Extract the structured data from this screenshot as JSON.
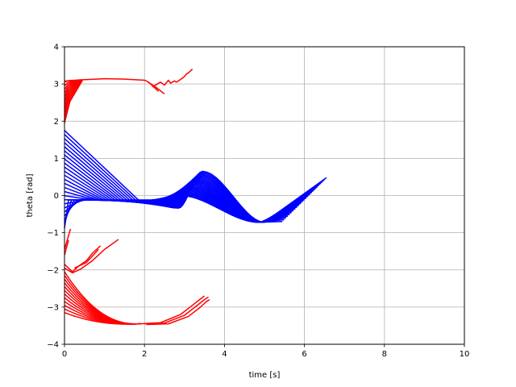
{
  "chart_data": {
    "type": "line",
    "title": "",
    "xlabel": "time [s]",
    "ylabel": "theta [rad]",
    "xlim": [
      0,
      10
    ],
    "ylim": [
      -4,
      4
    ],
    "xticks": [
      0,
      2,
      4,
      6,
      8,
      10
    ],
    "xtick_labels": [
      "0",
      "2",
      "4",
      "6",
      "8",
      "10"
    ],
    "yticks": [
      -4,
      -3,
      -2,
      -1,
      0,
      1,
      2,
      3,
      4
    ],
    "ytick_labels": [
      "−4",
      "−3",
      "−2",
      "−1",
      "0",
      "1",
      "2",
      "3",
      "4"
    ],
    "grid": true,
    "legend": false,
    "colors": {
      "red": "#ff0000",
      "blue": "#0000ff",
      "grid": "#b0b0b0",
      "axes": "#000000"
    },
    "series_groups": {
      "red_top_fan": {
        "color": "#ff0000",
        "count": 12,
        "t_start": 0.0,
        "t_end": 0.45,
        "y_start_range": [
          1.95,
          3.05
        ],
        "y_end": 3.1
      },
      "red_top_trunk": {
        "color": "#ff0000",
        "x": [
          0.0,
          0.4,
          1.0,
          1.5,
          2.0,
          2.05
        ],
        "y": [
          3.08,
          3.11,
          3.14,
          3.13,
          3.1,
          3.08
        ]
      },
      "red_top_branches": [
        {
          "color": "#ff0000",
          "x": [
            2.05,
            2.3,
            2.5
          ],
          "y": [
            3.08,
            2.9,
            2.73
          ]
        },
        {
          "color": "#ff0000",
          "x": [
            2.1,
            2.35
          ],
          "y": [
            3.05,
            2.8
          ]
        },
        {
          "color": "#ff0000",
          "x": [
            2.2,
            2.4,
            2.5,
            2.6,
            2.65,
            2.75,
            2.8,
            2.9,
            3.0,
            3.05,
            3.1,
            3.2
          ],
          "y": [
            2.92,
            3.05,
            2.97,
            3.1,
            3.02,
            3.08,
            3.05,
            3.12,
            3.2,
            3.27,
            3.3,
            3.4
          ]
        }
      ],
      "red_mid": [
        {
          "color": "#ff0000",
          "x": [
            0.0,
            0.15
          ],
          "y": [
            -1.45,
            -0.9
          ]
        },
        {
          "color": "#ff0000",
          "x": [
            0.0,
            0.1
          ],
          "y": [
            -1.6,
            -1.2
          ]
        },
        {
          "color": "#ff0000",
          "x": [
            0.0,
            0.2,
            0.35,
            0.55,
            0.7,
            0.9
          ],
          "y": [
            -1.85,
            -2.05,
            -1.9,
            -1.75,
            -1.55,
            -1.35
          ]
        },
        {
          "color": "#ff0000",
          "x": [
            0.0,
            0.2,
            0.4,
            0.7,
            1.0,
            1.35
          ],
          "y": [
            -1.95,
            -2.08,
            -1.98,
            -1.75,
            -1.45,
            -1.18
          ]
        },
        {
          "color": "#ff0000",
          "x": [
            0.25,
            0.55,
            0.85
          ],
          "y": [
            -1.95,
            -1.8,
            -1.45
          ]
        }
      ],
      "red_bottom_fan": {
        "color": "#ff0000",
        "count": 12,
        "t_start": 0.0,
        "t_merge": 1.9,
        "y_start_range": [
          -3.15,
          -2.05
        ],
        "y_merge": -3.45
      },
      "red_bottom_tails": [
        {
          "color": "#ff0000",
          "x": [
            1.9,
            2.4,
            2.9,
            3.2,
            3.4,
            3.5
          ],
          "y": [
            -3.45,
            -3.42,
            -3.2,
            -2.95,
            -2.78,
            -2.7
          ]
        },
        {
          "color": "#ff0000",
          "x": [
            2.0,
            2.5,
            3.0,
            3.3,
            3.5,
            3.6
          ],
          "y": [
            -3.45,
            -3.43,
            -3.22,
            -2.97,
            -2.8,
            -2.73
          ]
        },
        {
          "color": "#ff0000",
          "x": [
            2.05,
            2.6,
            3.1,
            3.4,
            3.55,
            3.63
          ],
          "y": [
            -3.47,
            -3.45,
            -3.25,
            -3.0,
            -2.85,
            -2.8
          ]
        }
      ],
      "blue_fan": {
        "color": "#0000ff",
        "count": 25,
        "y_start_range": [
          -0.88,
          1.75
        ],
        "x_conv_range": [
          0.1,
          1.85
        ],
        "y_conv": -0.12,
        "x_rise_range": [
          2.1,
          2.85
        ],
        "x_peak_range": [
          2.9,
          3.45
        ],
        "y_peak_range": [
          0.0,
          0.65
        ],
        "x_dip_range": [
          4.85,
          5.0
        ],
        "y_dip": -0.72,
        "x_end_range": [
          5.45,
          6.55
        ],
        "y_end_range": [
          -0.7,
          0.48
        ]
      }
    }
  }
}
